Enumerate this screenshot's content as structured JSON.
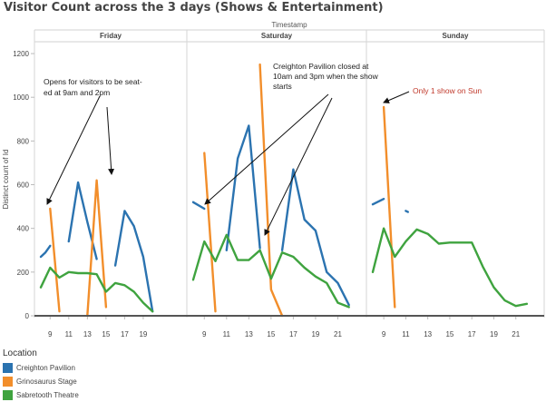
{
  "title": "Visitor Count across the 3 days (Shows & Entertainment)",
  "chart_data": {
    "type": "line",
    "column_header": "Timestamp",
    "ylabel": "Distinct count of Id",
    "ylim": [
      0,
      1250
    ],
    "yticks": [
      0,
      200,
      400,
      600,
      800,
      1000,
      1200
    ],
    "grid": false,
    "xlim": [
      8,
      23
    ],
    "panels": [
      {
        "name": "Friday",
        "xticks": [
          "9",
          "11",
          "13",
          "15",
          "17",
          "19"
        ],
        "series": [
          {
            "name": "Creighton Pavilion",
            "color": "#2b73b0",
            "segments": [
              [
                [
                  8,
                  270
                ],
                [
                  8.5,
                  290
                ],
                [
                  9,
                  320
                ]
              ],
              [
                [
                  11,
                  340
                ],
                [
                  12,
                  610
                ],
                [
                  13,
                  430
                ],
                [
                  14,
                  260
                ]
              ],
              [
                [
                  16,
                  230
                ],
                [
                  17,
                  480
                ],
                [
                  18,
                  410
                ],
                [
                  19,
                  270
                ],
                [
                  20,
                  20
                ]
              ]
            ]
          },
          {
            "name": "Grinosaurus Stage",
            "color": "#f28e2b",
            "segments": [
              [
                [
                  9,
                  490
                ],
                [
                  10,
                  20
                ]
              ],
              [
                [
                  13,
                  0
                ],
                [
                  14,
                  620
                ],
                [
                  15,
                  40
                ]
              ]
            ]
          },
          {
            "name": "Sabretooth Theatre",
            "color": "#3fa33f",
            "segments": [
              [
                [
                  8,
                  130
                ],
                [
                  9,
                  220
                ],
                [
                  10,
                  175
                ],
                [
                  11,
                  200
                ],
                [
                  12,
                  195
                ],
                [
                  13,
                  195
                ],
                [
                  14,
                  190
                ],
                [
                  15,
                  110
                ],
                [
                  16,
                  150
                ],
                [
                  17,
                  140
                ],
                [
                  18,
                  110
                ],
                [
                  19,
                  60
                ],
                [
                  20,
                  20
                ]
              ]
            ]
          }
        ]
      },
      {
        "name": "Saturday",
        "xticks": [
          "9",
          "11",
          "13",
          "15",
          "17",
          "19",
          "21"
        ],
        "series": [
          {
            "name": "Creighton Pavilion",
            "color": "#2b73b0",
            "segments": [
              [
                [
                  8,
                  520
                ],
                [
                  9,
                  490
                ]
              ],
              [
                [
                  11,
                  300
                ],
                [
                  12,
                  720
                ],
                [
                  13,
                  870
                ],
                [
                  14,
                  310
                ]
              ],
              [
                [
                  16,
                  300
                ],
                [
                  17,
                  670
                ],
                [
                  18,
                  440
                ],
                [
                  19,
                  390
                ],
                [
                  20,
                  200
                ],
                [
                  21,
                  150
                ],
                [
                  22,
                  50
                ]
              ]
            ]
          },
          {
            "name": "Grinosaurus Stage",
            "color": "#f28e2b",
            "segments": [
              [
                [
                  9,
                  745
                ],
                [
                  10,
                  20
                ]
              ],
              [
                [
                  14,
                  1150
                ],
                [
                  15,
                  120
                ],
                [
                  16,
                  0
                ]
              ]
            ]
          },
          {
            "name": "Sabretooth Theatre",
            "color": "#3fa33f",
            "segments": [
              [
                [
                  8,
                  165
                ],
                [
                  9,
                  340
                ],
                [
                  10,
                  250
                ],
                [
                  11,
                  370
                ],
                [
                  12,
                  255
                ],
                [
                  13,
                  255
                ],
                [
                  14,
                  300
                ],
                [
                  15,
                  170
                ],
                [
                  16,
                  290
                ],
                [
                  17,
                  270
                ],
                [
                  18,
                  220
                ],
                [
                  19,
                  180
                ],
                [
                  20,
                  150
                ],
                [
                  21,
                  60
                ],
                [
                  22,
                  40
                ]
              ]
            ]
          }
        ]
      },
      {
        "name": "Sunday",
        "xticks": [
          "9",
          "11",
          "13",
          "15",
          "17",
          "19",
          "21"
        ],
        "series": [
          {
            "name": "Creighton Pavilion",
            "color": "#2b73b0",
            "segments": [
              [
                [
                  8,
                  510
                ],
                [
                  9,
                  535
                ]
              ],
              [
                [
                  11,
                  480
                ],
                [
                  11.2,
                  475
                ]
              ]
            ]
          },
          {
            "name": "Grinosaurus Stage",
            "color": "#f28e2b",
            "segments": [
              [
                [
                  9,
                  955
                ],
                [
                  10,
                  40
                ]
              ]
            ]
          },
          {
            "name": "Sabretooth Theatre",
            "color": "#3fa33f",
            "segments": [
              [
                [
                  8,
                  200
                ],
                [
                  9,
                  400
                ],
                [
                  10,
                  270
                ],
                [
                  11,
                  340
                ],
                [
                  12,
                  395
                ],
                [
                  13,
                  375
                ],
                [
                  14,
                  330
                ],
                [
                  15,
                  335
                ],
                [
                  16,
                  335
                ],
                [
                  17,
                  335
                ],
                [
                  18,
                  225
                ],
                [
                  19,
                  130
                ],
                [
                  20,
                  70
                ],
                [
                  21,
                  45
                ],
                [
                  22,
                  55
                ]
              ]
            ]
          }
        ]
      }
    ],
    "annotations": [
      {
        "panel": 0,
        "lines": [
          "Opens for visitors to be seat-",
          "ed at 9am and 2pm"
        ],
        "color": "#222"
      },
      {
        "panel": 1,
        "lines": [
          "Creighton Pavilion closed at",
          "10am and 3pm when the show",
          "starts"
        ],
        "color": "#222"
      },
      {
        "panel": 2,
        "lines": [
          "Only 1 show on Sun"
        ],
        "color": "#c0392b"
      }
    ],
    "legend": {
      "title": "Location",
      "position": "bottom-left"
    }
  }
}
